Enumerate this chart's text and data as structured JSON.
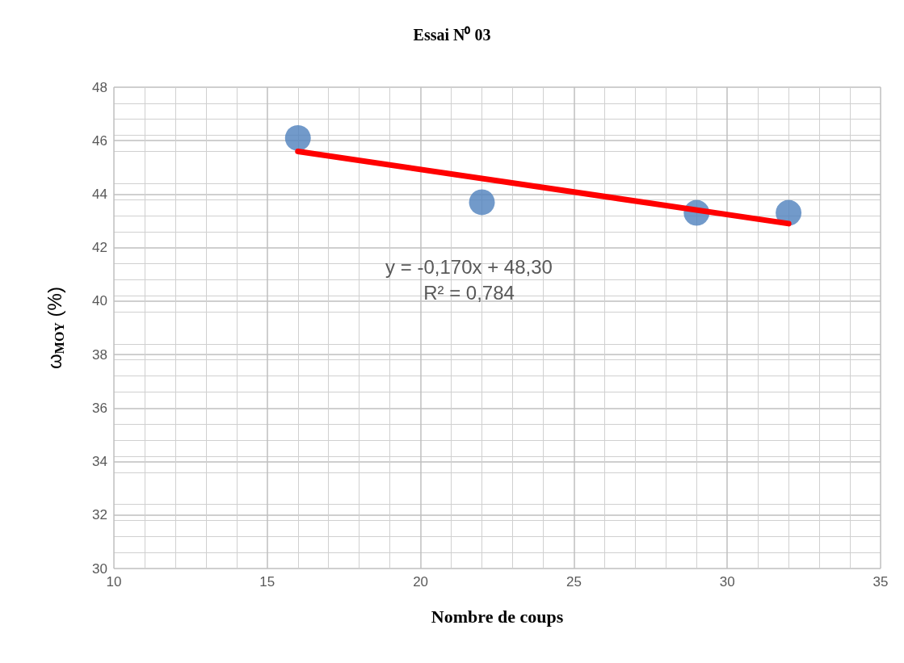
{
  "chart_data": {
    "type": "scatter",
    "title": "Essai N⁰ 03",
    "xlabel": "Nombre de coups",
    "ylabel": "ω$_{MOY}$ (%)",
    "annotations": [
      "y = -0,170x + 48,30",
      "R² = 0,784"
    ],
    "xlim": [
      10,
      35
    ],
    "xticks": [
      10,
      15,
      20,
      25,
      30,
      35
    ],
    "ylim": [
      30,
      48
    ],
    "yticks": [
      30,
      32,
      34,
      36,
      38,
      40,
      42,
      44,
      46,
      48
    ],
    "grid": true,
    "series": [
      {
        "marker": "circle",
        "color": "#4f81bd",
        "x": [
          16,
          22,
          29,
          32
        ],
        "values": [
          46.1,
          43.7,
          43.3,
          43.3
        ]
      },
      {
        "type": "line",
        "marker": "none",
        "color": "#ff0000",
        "line_style": "solid",
        "x": [
          16,
          32
        ],
        "values": [
          45.6,
          42.9
        ]
      }
    ]
  }
}
